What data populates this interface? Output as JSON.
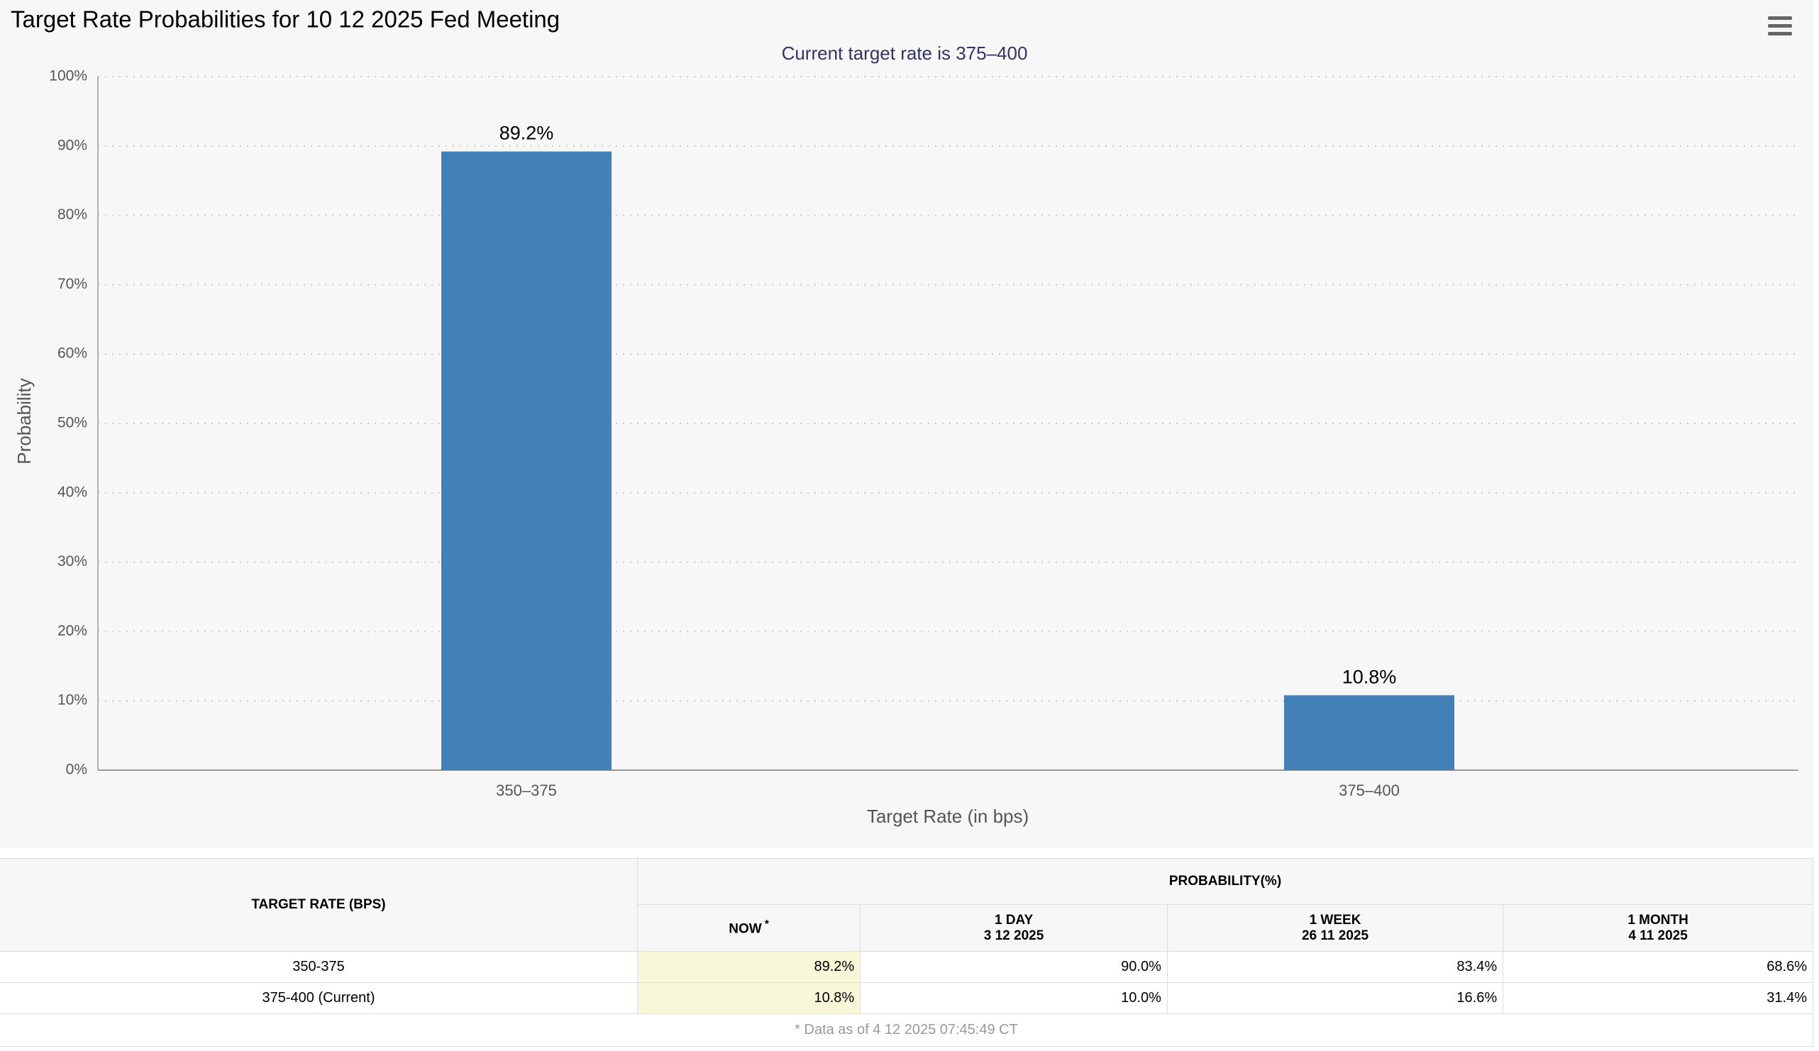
{
  "chart_data": {
    "type": "bar",
    "title": "Target Rate Probabilities for 10 12 2025 Fed Meeting",
    "subtitle": "Current target rate is 375–400",
    "y_label": "Probability",
    "x_label": "Target Rate (in bps)",
    "categories": [
      "350–375",
      "375–400"
    ],
    "values": [
      89.2,
      10.8
    ],
    "value_labels": [
      "89.2%",
      "10.8%"
    ],
    "color": "#4380b6",
    "ylim": [
      0,
      100
    ],
    "yticks": [
      {
        "value": 0,
        "label": "0%"
      },
      {
        "value": 10,
        "label": "10%"
      },
      {
        "value": 20,
        "label": "20%"
      },
      {
        "value": 30,
        "label": "30%"
      },
      {
        "value": 40,
        "label": "40%"
      },
      {
        "value": 50,
        "label": "50%"
      },
      {
        "value": 60,
        "label": "60%"
      },
      {
        "value": 70,
        "label": "70%"
      },
      {
        "value": 80,
        "label": "80%"
      },
      {
        "value": 90,
        "label": "90%"
      },
      {
        "value": 100,
        "label": "100%"
      }
    ],
    "grid": true
  },
  "table": {
    "rate_header": "TARGET RATE (BPS)",
    "prob_header": "PROBABILITY(%)",
    "columns": [
      {
        "label": "NOW",
        "note": "*"
      },
      {
        "label": "1 DAY",
        "date": "3 12 2025"
      },
      {
        "label": "1 WEEK",
        "date": "26 11 2025"
      },
      {
        "label": "1 MONTH",
        "date": "4 11 2025"
      }
    ],
    "rows": [
      [
        "350-375",
        "89.2%",
        "90.0%",
        "83.4%",
        "68.6%"
      ],
      [
        "375-400 (Current)",
        "10.8%",
        "10.0%",
        "16.6%",
        "31.4%"
      ]
    ],
    "footnote": "* Data as of 4 12 2025 07:45:49 CT"
  }
}
